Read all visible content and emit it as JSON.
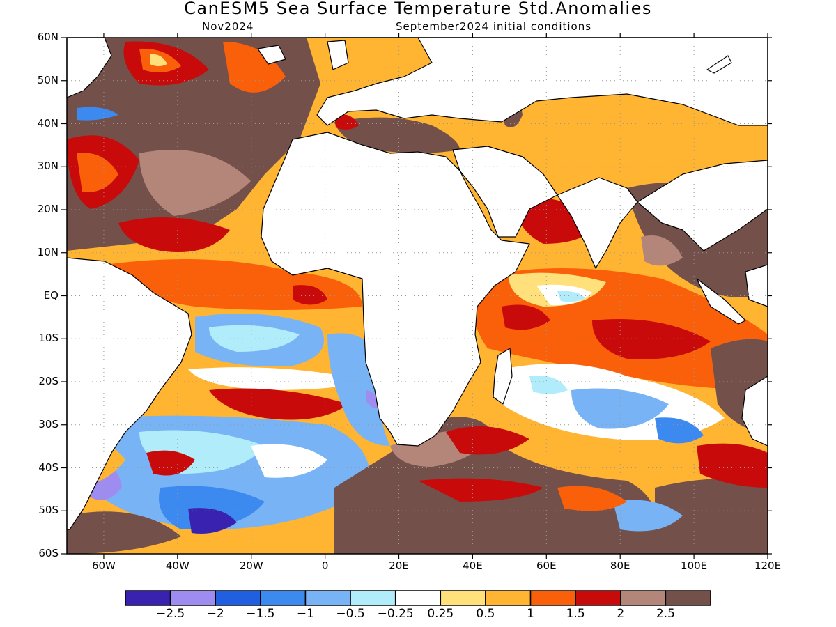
{
  "title": "CanESM5 Sea Surface Temperature Std.Anomalies",
  "subtitle_left": "Nov2024",
  "subtitle_right": "September2024 initial conditions",
  "lat_labels": [
    "60N",
    "50N",
    "40N",
    "30N",
    "20N",
    "10N",
    "EQ",
    "10S",
    "20S",
    "30S",
    "40S",
    "50S",
    "60S"
  ],
  "lon_labels": [
    "60W",
    "40W",
    "20W",
    "0",
    "20E",
    "40E",
    "60E",
    "80E",
    "100E",
    "120E"
  ],
  "colorbar": {
    "colors": [
      "#3a22b0",
      "#9f8cf0",
      "#1f5fe0",
      "#3c8af0",
      "#78b4f5",
      "#b0ecfa",
      "#ffffff",
      "#ffe07a",
      "#ffb432",
      "#fa5f0a",
      "#c80a0a",
      "#b4867a",
      "#74504a"
    ],
    "labels": [
      "−2.5",
      "−2",
      "−1.5",
      "−1",
      "−0.5",
      "−0.25",
      "0.25",
      "0.5",
      "1",
      "1.5",
      "2",
      "2.5"
    ]
  },
  "map": {
    "extent": {
      "lon_min": -70,
      "lon_max": 120,
      "lat_min": -60,
      "lat_max": 60
    },
    "land_color": "#ffffff",
    "grid": "dotted"
  }
}
